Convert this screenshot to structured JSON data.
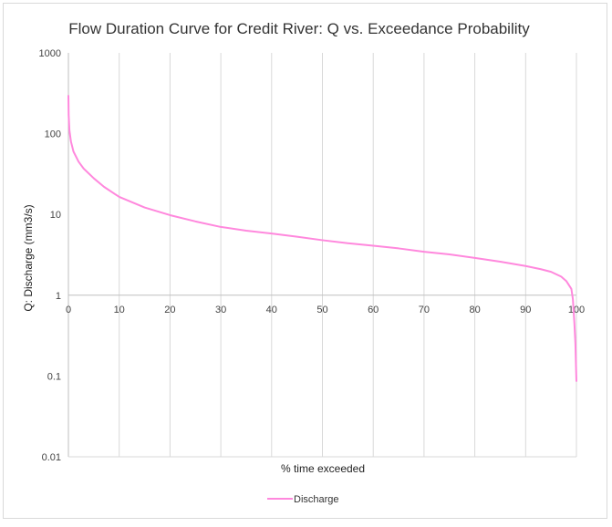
{
  "chart_data": {
    "type": "line",
    "title": "Flow Duration Curve for Credit River: Q vs. Exceedance Probability",
    "xlabel": "% time exceeded",
    "ylabel": "Q: Discharge (mm3/s)",
    "x_ticks": [
      "0",
      "10",
      "20",
      "30",
      "40",
      "50",
      "60",
      "70",
      "80",
      "90",
      "100"
    ],
    "y_ticks": [
      "0.01",
      "0.1",
      "1",
      "10",
      "100",
      "1000"
    ],
    "xlim": [
      0,
      100
    ],
    "ylim": [
      0.01,
      1000
    ],
    "y_scale": "log",
    "grid": "vertical",
    "legend_position": "bottom",
    "series": [
      {
        "name": "Discharge",
        "color": "#ff88dd",
        "x": [
          0,
          0.05,
          0.2,
          0.5,
          1,
          2,
          3,
          5,
          7,
          10,
          15,
          20,
          25,
          30,
          35,
          40,
          45,
          50,
          55,
          60,
          65,
          70,
          75,
          80,
          85,
          90,
          93,
          95,
          97,
          98,
          99,
          99.3,
          99.6,
          99.8,
          100
        ],
        "y": [
          300,
          170,
          110,
          80,
          60,
          45,
          37,
          28,
          22,
          16.5,
          12.2,
          9.8,
          8.2,
          7.0,
          6.3,
          5.8,
          5.3,
          4.8,
          4.4,
          4.1,
          3.8,
          3.45,
          3.2,
          2.9,
          2.6,
          2.3,
          2.1,
          1.95,
          1.7,
          1.5,
          1.2,
          0.9,
          0.45,
          0.25,
          0.085
        ]
      }
    ]
  }
}
